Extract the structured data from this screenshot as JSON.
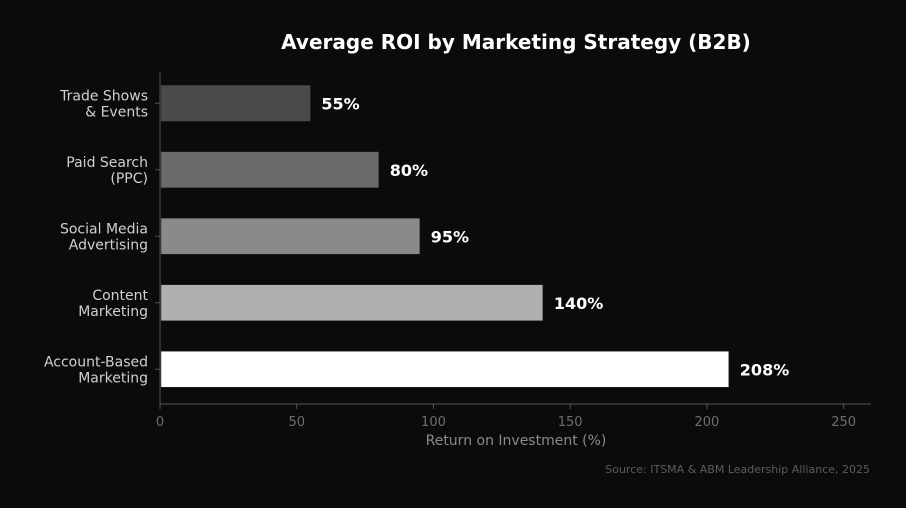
{
  "chart_data": {
    "type": "bar",
    "orientation": "horizontal",
    "title": "Average ROI by Marketing Strategy (B2B)",
    "xlabel": "Return on Investment (%)",
    "ylabel": "",
    "categories": [
      [
        "Trade Shows",
        "& Events"
      ],
      [
        "Paid Search",
        "(PPC)"
      ],
      [
        "Social Media",
        "Advertising"
      ],
      [
        "Content",
        "Marketing"
      ],
      [
        "Account-Based",
        "Marketing"
      ]
    ],
    "values": [
      55,
      80,
      95,
      140,
      208
    ],
    "data_labels": [
      "55%",
      "80%",
      "95%",
      "140%",
      "208%"
    ],
    "bar_colors": [
      "#4a4a4a",
      "#6a6a6a",
      "#8a8a8a",
      "#b0b0b0",
      "#ffffff"
    ],
    "xlim": [
      0,
      260
    ],
    "xticks": [
      0,
      50,
      100,
      150,
      200,
      250
    ],
    "grid": false,
    "legend": "none",
    "source": "Source: ITSMA & ABM Leadership Alliance, 2025"
  },
  "colors": {
    "background": "#0b0b0b",
    "axis": "#555555",
    "title": "#ffffff"
  }
}
